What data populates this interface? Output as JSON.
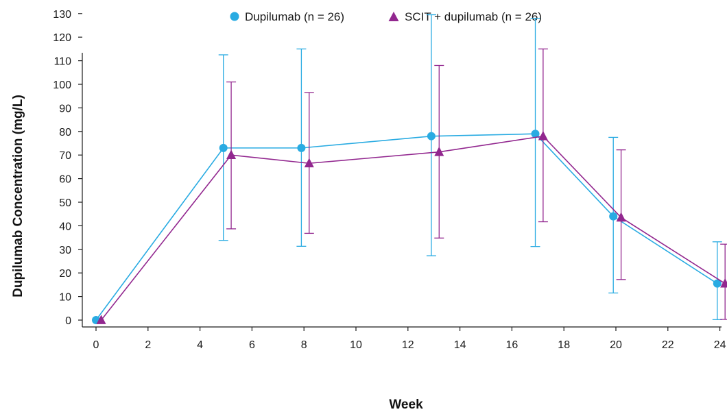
{
  "chart_data": {
    "type": "line",
    "title": "",
    "xlabel": "Week",
    "ylabel": "Dupilumab Concentration (mg/L)",
    "xlim": [
      -0.5,
      24
    ],
    "ylim": [
      0,
      130
    ],
    "xticks": [
      0,
      2,
      4,
      6,
      8,
      10,
      12,
      14,
      16,
      18,
      20,
      22,
      24
    ],
    "yticks": [
      0,
      10,
      20,
      30,
      40,
      50,
      60,
      70,
      80,
      90,
      100,
      110,
      120,
      130
    ],
    "grid": false,
    "legend_position": "top-center",
    "series": [
      {
        "name": "Dupilumab (n = 26)",
        "color": "#29abe2",
        "marker": "circle",
        "points": [
          {
            "x": 0,
            "y": 0,
            "err_low": 0,
            "err_high": 0
          },
          {
            "x": 4.9,
            "y": 73,
            "err_low": 33.8,
            "err_high": 112.5
          },
          {
            "x": 7.9,
            "y": 73,
            "err_low": 31.3,
            "err_high": 115
          },
          {
            "x": 12.9,
            "y": 78,
            "err_low": 27.3,
            "err_high": 129.5
          },
          {
            "x": 16.9,
            "y": 79,
            "err_low": 31.2,
            "err_high": 128
          },
          {
            "x": 19.9,
            "y": 44,
            "err_low": 11.5,
            "err_high": 77.5
          },
          {
            "x": 23.9,
            "y": 15.5,
            "err_low": 0.2,
            "err_high": 33.2
          }
        ]
      },
      {
        "name": "SCIT + dupilumab (n = 26)",
        "color": "#92278f",
        "marker": "triangle",
        "points": [
          {
            "x": 0.2,
            "y": 0,
            "err_low": 0,
            "err_high": 0
          },
          {
            "x": 5.2,
            "y": 70,
            "err_low": 38.7,
            "err_high": 101
          },
          {
            "x": 8.2,
            "y": 66.5,
            "err_low": 36.8,
            "err_high": 96.5
          },
          {
            "x": 13.2,
            "y": 71.3,
            "err_low": 34.8,
            "err_high": 108
          },
          {
            "x": 17.2,
            "y": 78,
            "err_low": 41.7,
            "err_high": 115
          },
          {
            "x": 20.2,
            "y": 43.5,
            "err_low": 17.2,
            "err_high": 72.2
          },
          {
            "x": 24.2,
            "y": 15.5,
            "err_low": 0.3,
            "err_high": 32.2
          }
        ]
      }
    ]
  }
}
